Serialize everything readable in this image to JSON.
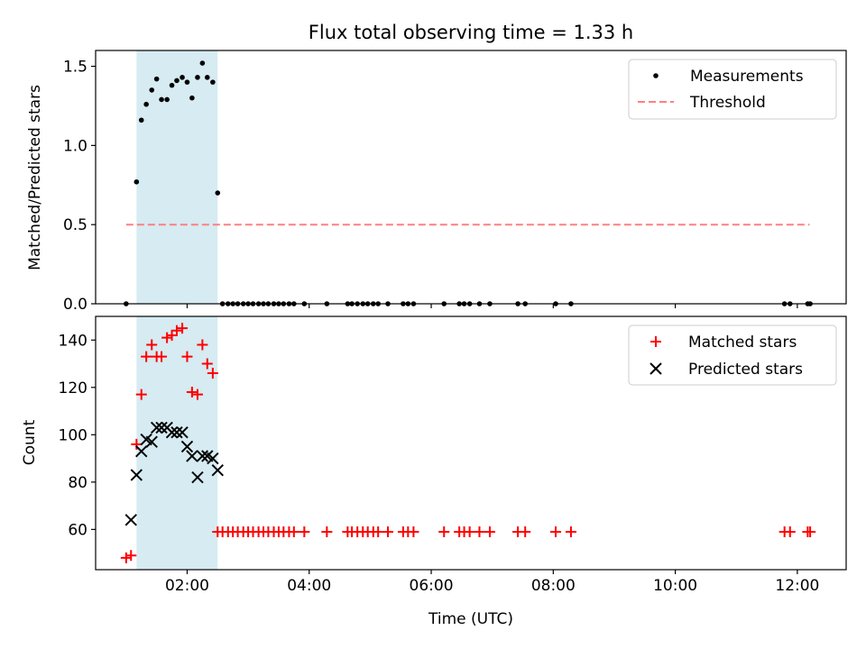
{
  "chart_data": [
    {
      "type": "scatter",
      "title": "Flux total observing time = 1.33 h",
      "xlabel": "",
      "ylabel": "Matched/Predicted stars",
      "xlim": [
        0.5,
        12.8
      ],
      "ylim": [
        0,
        1.6
      ],
      "x_ticks": [
        {
          "value": 2,
          "label": "02:00"
        },
        {
          "value": 4,
          "label": "04:00"
        },
        {
          "value": 6,
          "label": "06:00"
        },
        {
          "value": 8,
          "label": "08:00"
        },
        {
          "value": 10,
          "label": "10:00"
        },
        {
          "value": 12,
          "label": "12:00"
        }
      ],
      "y_ticks": [
        {
          "value": 0,
          "label": "0.0"
        },
        {
          "value": 0.5,
          "label": "0.5"
        },
        {
          "value": 1.0,
          "label": "1.0"
        },
        {
          "value": 1.5,
          "label": "1.5"
        }
      ],
      "shaded_span": {
        "x0": 1.17,
        "x1": 2.5,
        "color": "#add8e6"
      },
      "legend_position": "top-right",
      "series": [
        {
          "name": "Measurements",
          "kind": "dots",
          "color": "#000000",
          "x": [
            1.0,
            1.17,
            1.25,
            1.33,
            1.42,
            1.5,
            1.58,
            1.67,
            1.75,
            1.83,
            1.92,
            2.0,
            2.08,
            2.17,
            2.25,
            2.33,
            2.42,
            2.5,
            2.58,
            2.67,
            2.75,
            2.83,
            2.92,
            3.0,
            3.08,
            3.17,
            3.25,
            3.33,
            3.42,
            3.5,
            3.58,
            3.67,
            3.75,
            3.92,
            4.29,
            4.63,
            4.7,
            4.79,
            4.88,
            4.96,
            5.05,
            5.13,
            5.29,
            5.54,
            5.62,
            5.71,
            6.21,
            6.46,
            6.54,
            6.63,
            6.79,
            6.96,
            7.42,
            7.54,
            8.04,
            8.29,
            11.79,
            11.88,
            12.17,
            12.21
          ],
          "y": [
            0.0,
            0.77,
            1.16,
            1.26,
            1.35,
            1.42,
            1.29,
            1.29,
            1.38,
            1.41,
            1.43,
            1.4,
            1.3,
            1.43,
            1.52,
            1.43,
            1.4,
            0.7,
            0.0,
            0.0,
            0.0,
            0.0,
            0.0,
            0.0,
            0.0,
            0.0,
            0.0,
            0.0,
            0.0,
            0.0,
            0.0,
            0.0,
            0.0,
            0.0,
            0.0,
            0.0,
            0.0,
            0.0,
            0.0,
            0.0,
            0.0,
            0.0,
            0.0,
            0.0,
            0.0,
            0.0,
            0.0,
            0.0,
            0.0,
            0.0,
            0.0,
            0.0,
            0.0,
            0.0,
            0.0,
            0.0,
            0.0,
            0.0,
            0.0,
            0.0
          ]
        },
        {
          "name": "Threshold",
          "kind": "dashed-line",
          "color": "#ff7f7f",
          "x": [
            1.0,
            12.2
          ],
          "y": [
            0.5,
            0.5
          ]
        }
      ]
    },
    {
      "type": "scatter",
      "title": "",
      "xlabel": "Time (UTC)",
      "ylabel": "Count",
      "xlim": [
        0.5,
        12.8
      ],
      "ylim": [
        43,
        150
      ],
      "x_ticks": [
        {
          "value": 2,
          "label": "02:00"
        },
        {
          "value": 4,
          "label": "04:00"
        },
        {
          "value": 6,
          "label": "06:00"
        },
        {
          "value": 8,
          "label": "08:00"
        },
        {
          "value": 10,
          "label": "10:00"
        },
        {
          "value": 12,
          "label": "12:00"
        }
      ],
      "y_ticks": [
        {
          "value": 60,
          "label": "60"
        },
        {
          "value": 80,
          "label": "80"
        },
        {
          "value": 100,
          "label": "100"
        },
        {
          "value": 120,
          "label": "120"
        },
        {
          "value": 140,
          "label": "140"
        }
      ],
      "shaded_span": {
        "x0": 1.17,
        "x1": 2.5,
        "color": "#add8e6"
      },
      "legend_position": "top-right",
      "series": [
        {
          "name": "Matched stars",
          "kind": "plus",
          "color": "#ff0000",
          "x": [
            1.0,
            1.08,
            1.17,
            1.25,
            1.33,
            1.42,
            1.5,
            1.58,
            1.67,
            1.75,
            1.83,
            1.92,
            2.0,
            2.08,
            2.17,
            2.25,
            2.33,
            2.42,
            2.5,
            2.58,
            2.67,
            2.75,
            2.83,
            2.92,
            3.0,
            3.08,
            3.17,
            3.25,
            3.33,
            3.42,
            3.5,
            3.58,
            3.67,
            3.75,
            3.92,
            4.29,
            4.63,
            4.7,
            4.79,
            4.88,
            4.96,
            5.05,
            5.13,
            5.29,
            5.54,
            5.62,
            5.71,
            6.21,
            6.46,
            6.54,
            6.63,
            6.79,
            6.96,
            7.42,
            7.54,
            8.04,
            8.29,
            11.79,
            11.88,
            12.17,
            12.21
          ],
          "y": [
            48,
            49,
            96,
            117,
            133,
            138,
            133,
            133,
            141,
            142,
            144,
            145,
            133,
            118,
            117,
            138,
            130,
            126,
            59,
            59,
            59,
            59,
            59,
            59,
            59,
            59,
            59,
            59,
            59,
            59,
            59,
            59,
            59,
            59,
            59,
            59,
            59,
            59,
            59,
            59,
            59,
            59,
            59,
            59,
            59,
            59,
            59,
            59,
            59,
            59,
            59,
            59,
            59,
            59,
            59,
            59,
            59,
            59,
            59,
            59,
            59
          ]
        },
        {
          "name": "Predicted stars",
          "kind": "cross",
          "color": "#000000",
          "x": [
            1.08,
            1.17,
            1.25,
            1.33,
            1.42,
            1.5,
            1.58,
            1.67,
            1.75,
            1.83,
            1.92,
            2.0,
            2.08,
            2.17,
            2.25,
            2.33,
            2.42,
            2.5
          ],
          "y": [
            64,
            83,
            93,
            98,
            97,
            103,
            103,
            103,
            101,
            101,
            101,
            95,
            91,
            82,
            91,
            91,
            90,
            85
          ]
        }
      ]
    }
  ]
}
